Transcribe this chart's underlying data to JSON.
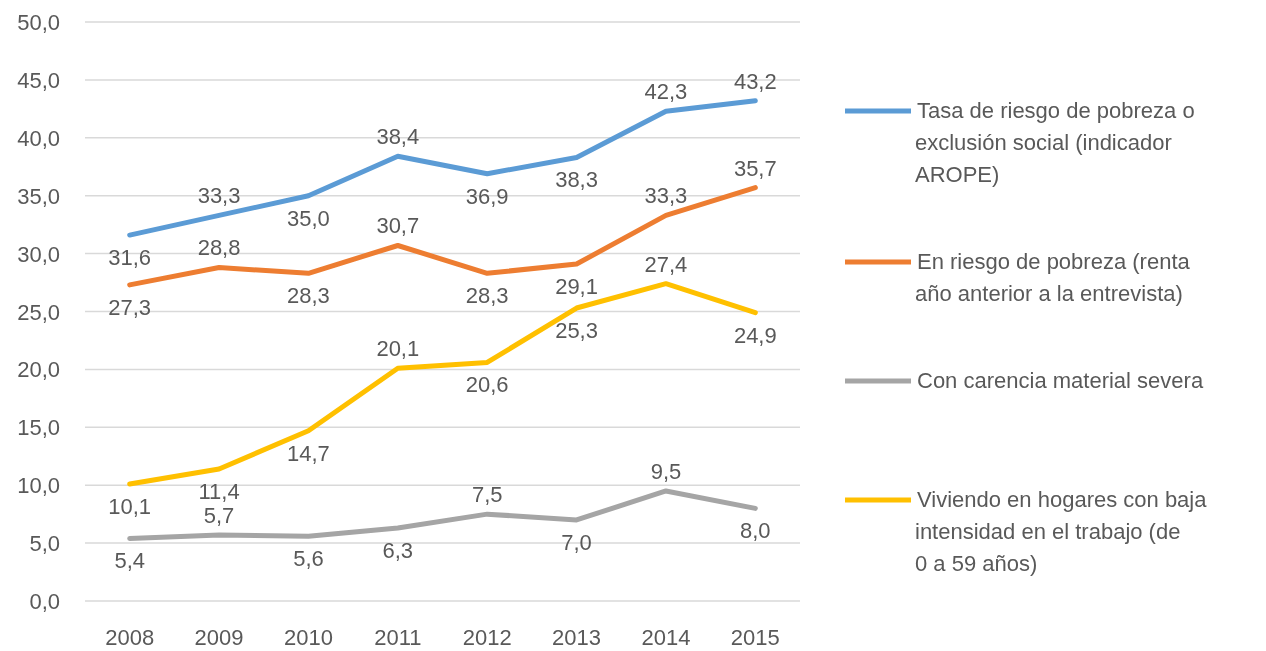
{
  "chart_data": {
    "type": "line",
    "categories": [
      "2008",
      "2009",
      "2010",
      "2011",
      "2012",
      "2013",
      "2014",
      "2015"
    ],
    "series": [
      {
        "name": "Tasa de riesgo de pobreza o exclusión social (indicador AROPE)",
        "color": "#5b9bd5",
        "values": [
          31.6,
          33.3,
          35.0,
          38.4,
          36.9,
          38.3,
          42.3,
          43.2
        ],
        "value_labels": [
          "31,6",
          "33,3",
          "35,0",
          "38,4",
          "36,9",
          "38,3",
          "42,3",
          "43,2"
        ]
      },
      {
        "name": "En riesgo de pobreza (renta año anterior a la entrevista)",
        "color": "#ed7d31",
        "values": [
          27.3,
          28.8,
          28.3,
          30.7,
          28.3,
          29.1,
          33.3,
          35.7
        ],
        "value_labels": [
          "27,3",
          "28,8",
          "28,3",
          "30,7",
          "28,3",
          "29,1",
          "33,3",
          "35,7"
        ]
      },
      {
        "name": "Con carencia material severa",
        "color": "#a5a5a5",
        "values": [
          5.4,
          5.7,
          5.6,
          6.3,
          7.5,
          7.0,
          9.5,
          8.0
        ],
        "value_labels": [
          "5,4",
          "5,7",
          "5,6",
          "6,3",
          "7,5",
          "7,0",
          "9,5",
          "8,0"
        ]
      },
      {
        "name": "Viviendo en hogares con baja intensidad en el trabajo (de 0 a 59 años)",
        "color": "#ffc000",
        "values": [
          10.1,
          11.4,
          14.7,
          20.1,
          20.6,
          25.3,
          27.4,
          24.9
        ],
        "value_labels": [
          "10,1",
          "11,4",
          "14,7",
          "20,1",
          "20,6",
          "25,3",
          "27,4",
          "24,9"
        ]
      }
    ],
    "ylim": [
      0,
      50
    ],
    "yticks": [
      {
        "value": 0,
        "label": "0,0"
      },
      {
        "value": 5,
        "label": "5,0"
      },
      {
        "value": 10,
        "label": "10,0"
      },
      {
        "value": 15,
        "label": "15,0"
      },
      {
        "value": 20,
        "label": "20,0"
      },
      {
        "value": 25,
        "label": "25,0"
      },
      {
        "value": 30,
        "label": "30,0"
      },
      {
        "value": 35,
        "label": "35,0"
      },
      {
        "value": 40,
        "label": "40,0"
      },
      {
        "value": 45,
        "label": "45,0"
      },
      {
        "value": 50,
        "label": "50,0"
      }
    ],
    "grid": "y",
    "legend": "right",
    "marker": "none",
    "line_style": "solid"
  }
}
